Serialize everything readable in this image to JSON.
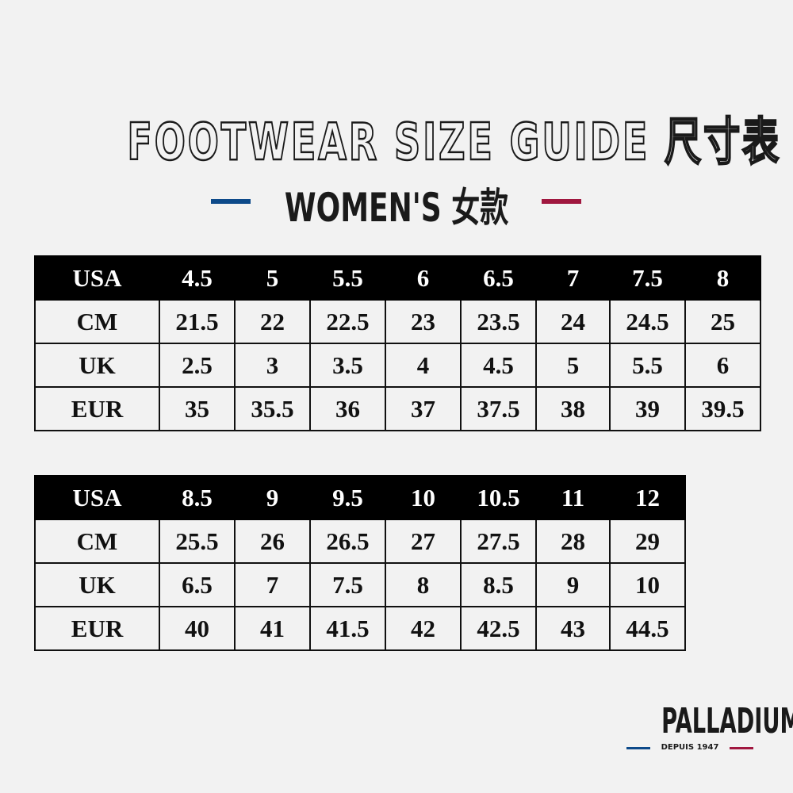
{
  "title": "FOOTWEAR SIZE GUIDE 尺寸表",
  "subtitle": "WOMEN'S 女款",
  "colors": {
    "blue": "#0d4a8a",
    "red": "#a0173f",
    "header_bg": "#000000",
    "background": "#f2f2f2"
  },
  "tables": [
    {
      "rows": [
        {
          "label": "USA",
          "values": [
            "4.5",
            "5",
            "5.5",
            "6",
            "6.5",
            "7",
            "7.5",
            "8"
          ]
        },
        {
          "label": "CM",
          "values": [
            "21.5",
            "22",
            "22.5",
            "23",
            "23.5",
            "24",
            "24.5",
            "25"
          ]
        },
        {
          "label": "UK",
          "values": [
            "2.5",
            "3",
            "3.5",
            "4",
            "4.5",
            "5",
            "5.5",
            "6"
          ]
        },
        {
          "label": "EUR",
          "values": [
            "35",
            "35.5",
            "36",
            "37",
            "37.5",
            "38",
            "39",
            "39.5"
          ]
        }
      ]
    },
    {
      "rows": [
        {
          "label": "USA",
          "values": [
            "8.5",
            "9",
            "9.5",
            "10",
            "10.5",
            "11",
            "12"
          ]
        },
        {
          "label": "CM",
          "values": [
            "25.5",
            "26",
            "26.5",
            "27",
            "27.5",
            "28",
            "29"
          ]
        },
        {
          "label": "UK",
          "values": [
            "6.5",
            "7",
            "7.5",
            "8",
            "8.5",
            "9",
            "10"
          ]
        },
        {
          "label": "EUR",
          "values": [
            "40",
            "41",
            "41.5",
            "42",
            "42.5",
            "43",
            "44.5"
          ]
        }
      ]
    }
  ],
  "logo": {
    "name": "PALLADIUM",
    "tagline": "DEPUIS 1947"
  }
}
